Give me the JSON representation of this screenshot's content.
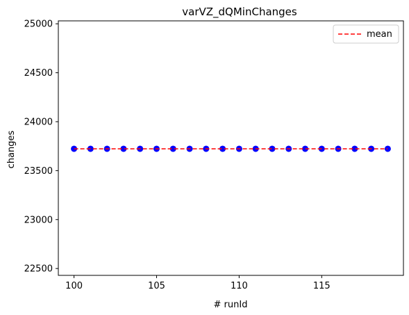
{
  "chart_data": {
    "type": "scatter",
    "title": "varVZ_dQMinChanges",
    "xlabel": "# runId",
    "ylabel": "changes",
    "xlim": [
      99.05,
      119.95
    ],
    "ylim": [
      22430,
      25030
    ],
    "xticks": [
      100,
      105,
      110,
      115
    ],
    "yticks": [
      22500,
      23000,
      23500,
      24000,
      24500,
      25000
    ],
    "grid": false,
    "legend_position": "top-right",
    "series": [
      {
        "kind": "points",
        "color": "#0000ff",
        "x": [
          100,
          101,
          102,
          103,
          104,
          105,
          106,
          107,
          108,
          109,
          110,
          111,
          112,
          113,
          114,
          115,
          116,
          117,
          118,
          119
        ],
        "y": [
          23723,
          23723,
          23723,
          23723,
          23723,
          23723,
          23723,
          23723,
          23723,
          23723,
          23723,
          23723,
          23723,
          23723,
          23723,
          23723,
          23723,
          23723,
          23723,
          23723
        ]
      },
      {
        "kind": "dashed-line",
        "name": "mean",
        "color": "#ff0000",
        "x": [
          100,
          119
        ],
        "y": [
          23723,
          23723
        ]
      }
    ]
  }
}
